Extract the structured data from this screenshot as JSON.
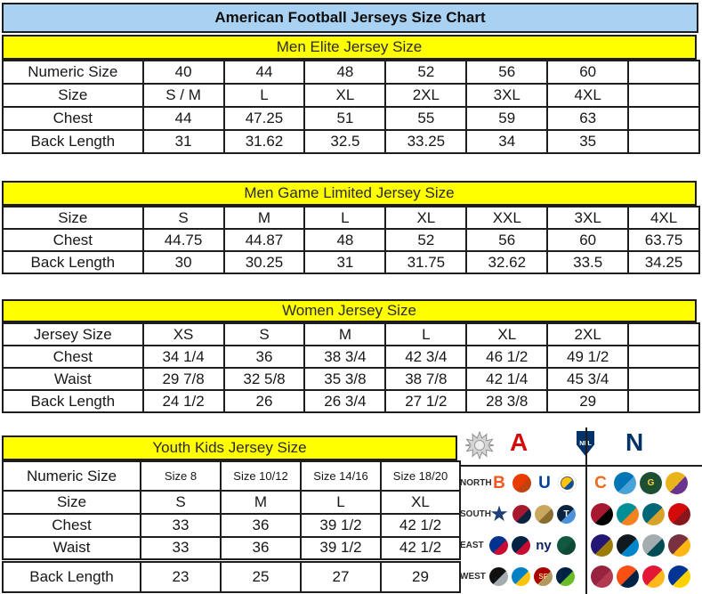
{
  "title": "American Football Jerseys Size Chart",
  "colors": {
    "title_bg": "#a9d2f2",
    "section_header_bg": "#ffff00",
    "border": "#1d1d1d",
    "afc_red": "#d50a0a",
    "nfc_blue": "#013369"
  },
  "sections": [
    {
      "header": "Men Elite Jersey Size",
      "rows": [
        [
          "Numeric Size",
          "40",
          "44",
          "48",
          "52",
          "56",
          "60",
          ""
        ],
        [
          "Size",
          "S / M",
          "L",
          "XL",
          "2XL",
          "3XL",
          "4XL",
          ""
        ],
        [
          "Chest",
          "44",
          "47.25",
          "51",
          "55",
          "59",
          "63",
          ""
        ],
        [
          "Back Length",
          "31",
          "31.62",
          "32.5",
          "33.25",
          "34",
          "35",
          ""
        ]
      ]
    },
    {
      "header": "Men Game Limited Jersey Size",
      "rows": [
        [
          "Size",
          "S",
          "M",
          "L",
          "XL",
          "XXL",
          "3XL",
          "4XL"
        ],
        [
          "Chest",
          "44.75",
          "44.87",
          "48",
          "52",
          "56",
          "60",
          "63.75"
        ],
        [
          "Back Length",
          "30",
          "30.25",
          "31",
          "31.75",
          "32.62",
          "33.5",
          "34.25"
        ]
      ]
    },
    {
      "header": "Women Jersey Size",
      "rows": [
        [
          "Jersey Size",
          "XS",
          "S",
          "M",
          "L",
          "XL",
          "2XL",
          ""
        ],
        [
          "Chest",
          "34 1/4",
          "36",
          "38 3/4",
          "42 3/4",
          "46 1/2",
          "49 1/2",
          ""
        ],
        [
          "Waist",
          "29 7/8",
          "32 5/8",
          "35 3/8",
          "38 7/8",
          "42 1/4",
          "45 3/4",
          ""
        ],
        [
          "Back Length",
          "24 1/2",
          "26",
          "26 3/4",
          "27 1/2",
          "28 3/8",
          "29",
          ""
        ]
      ]
    },
    {
      "header": "Youth Kids Jersey Size",
      "rows": [
        [
          "Numeric Size",
          "Size 8",
          "Size 10/12",
          "Size 14/16",
          "Size 18/20"
        ],
        [
          "Size",
          "S",
          "M",
          "L",
          "XL"
        ],
        [
          "Chest",
          "33",
          "36",
          "39 1/2",
          "42 1/2"
        ],
        [
          "Waist",
          "33",
          "36",
          "39 1/2",
          "42 1/2"
        ],
        [
          "Back Length",
          "23",
          "25",
          "27",
          "29"
        ]
      ]
    }
  ],
  "logos": {
    "afc_label": "A",
    "nfl_label": "NFL",
    "nfc_label": "N",
    "rows": [
      {
        "label": "NORTH",
        "afc": [
          {
            "name": "bengals-logo",
            "kind": "glyph",
            "glyph": "B",
            "c1": "#f2571d"
          },
          {
            "name": "browns-helmet-logo",
            "kind": "chip",
            "c1": "#ea3b00",
            "c2": "#c2410c"
          },
          {
            "name": "colts-horseshoe-logo",
            "kind": "glyph",
            "glyph": "U",
            "c1": "#01439c"
          },
          {
            "name": "steelers-logo",
            "kind": "chip",
            "c1": "#ffc20e",
            "c2": "#00539b",
            "ring": true
          }
        ],
        "nfc": [
          {
            "name": "bears-logo",
            "kind": "glyph",
            "glyph": "C",
            "c1": "#e96b1f"
          },
          {
            "name": "lions-logo",
            "kind": "chip",
            "c1": "#0076b6",
            "c2": "#4aa3d8"
          },
          {
            "name": "packers-logo",
            "kind": "chip",
            "c1": "#1d4f33",
            "c2": "#1d4f33",
            "glyph": "G",
            "fg": "#ffd23e"
          },
          {
            "name": "vikings-horn-logo",
            "kind": "chip",
            "c1": "#e9b31c",
            "c2": "#6a3390"
          }
        ]
      },
      {
        "label": "SOUTH",
        "afc": [
          {
            "name": "cowboys-star-logo",
            "kind": "glyph",
            "glyph": "★",
            "c1": "#1f3f77",
            "size": 21
          },
          {
            "name": "texans-logo",
            "kind": "chip",
            "c1": "#a6192e",
            "c2": "#0b2240"
          },
          {
            "name": "saints-fleur-logo",
            "kind": "chip",
            "c1": "#c9a85e",
            "c2": "#8a6d2f"
          },
          {
            "name": "titans-logo",
            "kind": "chip",
            "c1": "#0c2340",
            "c2": "#4b92db",
            "glyph": "T"
          }
        ],
        "nfc": [
          {
            "name": "falcons-logo",
            "kind": "chip",
            "c1": "#a71930",
            "c2": "#000000"
          },
          {
            "name": "dolphins-logo",
            "kind": "chip",
            "c1": "#008e97",
            "c2": "#f58220"
          },
          {
            "name": "jaguars-logo",
            "kind": "chip",
            "c1": "#006778",
            "c2": "#d7a22a"
          },
          {
            "name": "buccaneers-flag-logo",
            "kind": "chip",
            "c1": "#d50a0a",
            "c2": "#89161a"
          }
        ]
      },
      {
        "label": "EAST",
        "afc": [
          {
            "name": "bills-logo",
            "kind": "chip",
            "c1": "#00338d",
            "c2": "#c60c30"
          },
          {
            "name": "patriots-logo",
            "kind": "chip",
            "c1": "#002244",
            "c2": "#c60c30"
          },
          {
            "name": "giants-ny-logo",
            "kind": "glyph",
            "glyph": "ny",
            "c1": "#0b2265",
            "size": 15
          },
          {
            "name": "jets-logo",
            "kind": "chip",
            "c1": "#125740",
            "c2": "#0f4a37"
          }
        ],
        "nfc": [
          {
            "name": "ravens-logo",
            "kind": "chip",
            "c1": "#241773",
            "c2": "#9e7c0c"
          },
          {
            "name": "panthers-logo",
            "kind": "chip",
            "c1": "#101820",
            "c2": "#0085ca"
          },
          {
            "name": "eagles-logo",
            "kind": "chip",
            "c1": "#a5acaf",
            "c2": "#004c54"
          },
          {
            "name": "redskins-logo",
            "kind": "chip",
            "c1": "#773141",
            "c2": "#ffb612"
          }
        ]
      },
      {
        "label": "WEST",
        "afc": [
          {
            "name": "raiders-shield-logo",
            "kind": "chip",
            "c1": "#101010",
            "c2": "#a5acaf"
          },
          {
            "name": "chargers-bolt-logo",
            "kind": "chip",
            "c1": "#0080c6",
            "c2": "#ffc20e"
          },
          {
            "name": "49ers-logo",
            "kind": "chip",
            "c1": "#aa0000",
            "c2": "#b3995d",
            "glyph": "SF",
            "fg": "#ffd78e",
            "size": 8
          },
          {
            "name": "seahawks-logo",
            "kind": "chip",
            "c1": "#002244",
            "c2": "#69be28"
          }
        ],
        "nfc": [
          {
            "name": "cardinals-logo",
            "kind": "chip",
            "c1": "#97233f",
            "c2": "#b23a50"
          },
          {
            "name": "broncos-logo",
            "kind": "chip",
            "c1": "#fb4f14",
            "c2": "#002244"
          },
          {
            "name": "chiefs-arrowhead-logo",
            "kind": "chip",
            "c1": "#e31837",
            "c2": "#ffb81c"
          },
          {
            "name": "rams-logo",
            "kind": "chip",
            "c1": "#003594",
            "c2": "#ffd100"
          }
        ]
      }
    ]
  }
}
